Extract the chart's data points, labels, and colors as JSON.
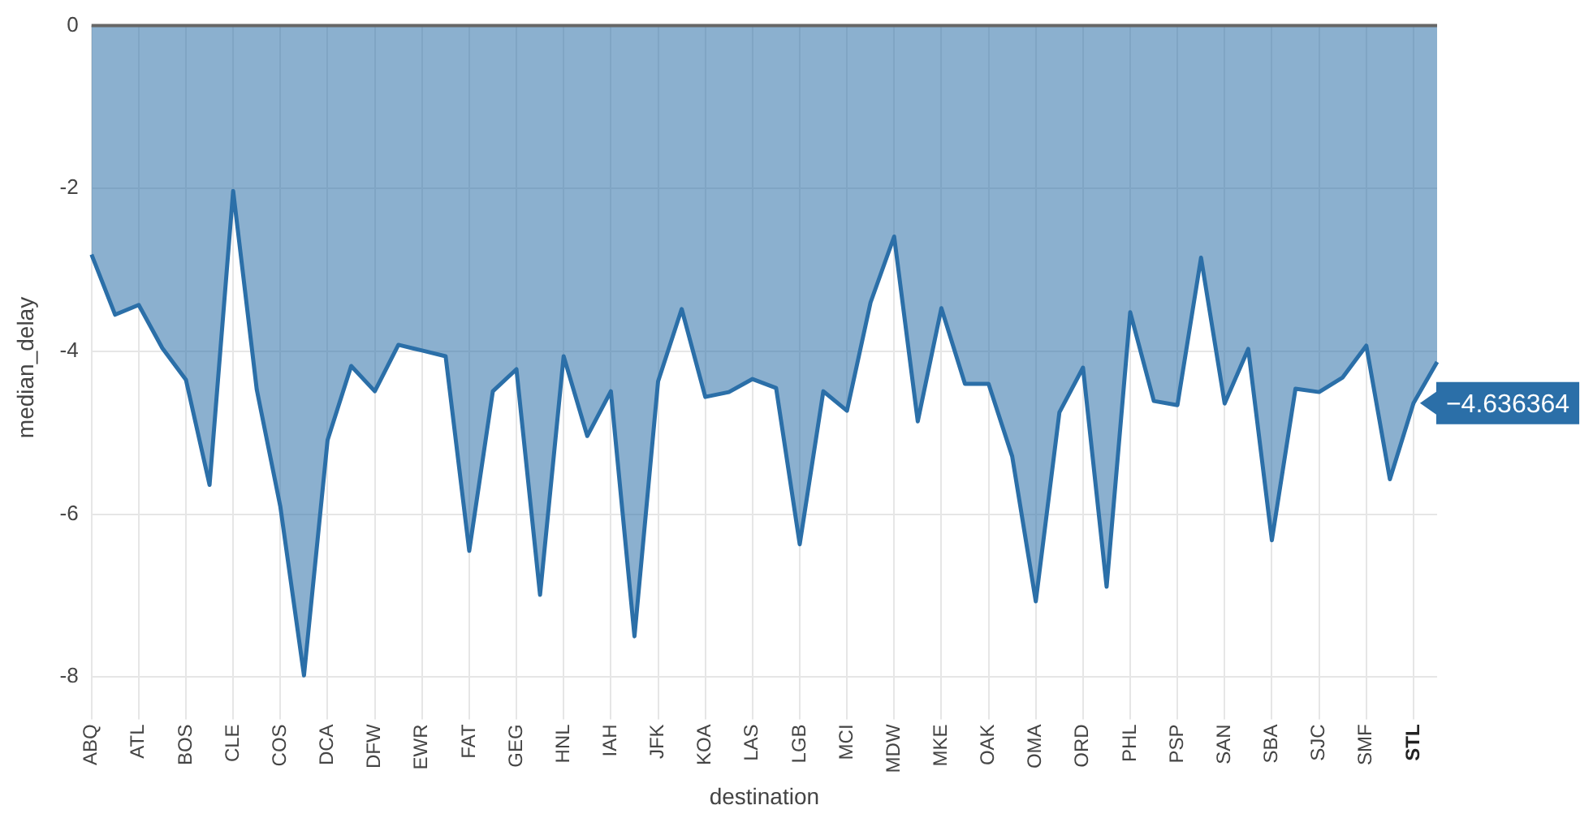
{
  "chart_data": {
    "type": "area",
    "xlabel": "destination",
    "ylabel": "median_delay",
    "categories": [
      "ABQ",
      null,
      "ATL",
      null,
      "BOS",
      null,
      "CLE",
      null,
      "COS",
      null,
      "DCA",
      null,
      "DFW",
      null,
      "EWR",
      null,
      "FAT",
      null,
      "GEG",
      null,
      "HNL",
      null,
      "IAH",
      null,
      "JFK",
      null,
      "KOA",
      null,
      "LAS",
      null,
      "LGB",
      null,
      "MCI",
      null,
      "MDW",
      null,
      "MKE",
      null,
      "OAK",
      null,
      "OMA",
      null,
      "ORD",
      null,
      "PHL",
      null,
      "PSP",
      null,
      "SAN",
      null,
      "SBA",
      null,
      "SJC",
      null,
      "SMF",
      null,
      "STL",
      null
    ],
    "series": [
      {
        "color": "#2b6fa8",
        "values": [
          -2.81,
          -3.55,
          -3.43,
          -3.96,
          -4.35,
          -5.64,
          -2.03,
          -4.47,
          -5.91,
          -7.98,
          -5.09,
          -4.18,
          -4.49,
          -3.92,
          -3.99,
          -4.06,
          -6.45,
          -4.49,
          -4.22,
          -6.99,
          -4.06,
          -5.04,
          -4.49,
          -7.5,
          -4.37,
          -3.48,
          -4.56,
          -4.5,
          -4.34,
          -4.45,
          -6.37,
          -4.49,
          -4.73,
          -3.4,
          -2.59,
          -4.86,
          -3.47,
          -4.4,
          -4.4,
          -5.29,
          -7.07,
          -4.75,
          -4.2,
          -6.89,
          -3.52,
          -4.61,
          -4.66,
          -2.85,
          -4.64,
          -3.97,
          -6.32,
          -4.46,
          -4.5,
          -4.32,
          -3.93,
          -5.57,
          -4.636364,
          -4.13
        ]
      }
    ],
    "ylim": [
      -8.4,
      0
    ],
    "yticks": [
      0,
      -2,
      -4,
      -6,
      -8
    ],
    "grid": true,
    "legend": false,
    "annotations": [
      {
        "text": "−4.636364",
        "x": "STL",
        "y": -4.636364
      }
    ]
  }
}
